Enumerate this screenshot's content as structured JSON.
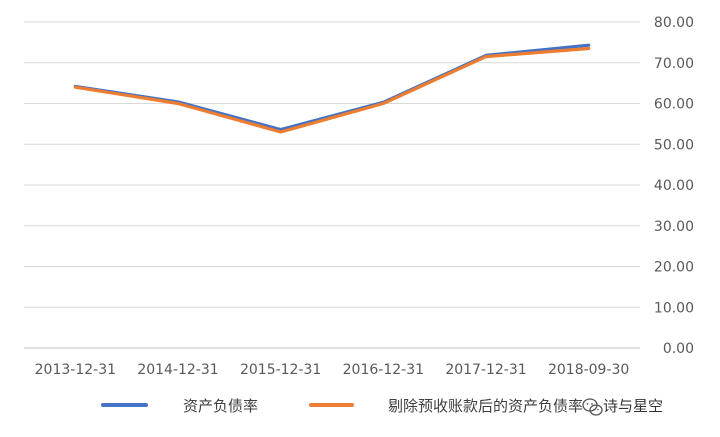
{
  "chart_data": {
    "type": "line",
    "title": "",
    "xlabel": "",
    "ylabel": "",
    "categories": [
      "2013-12-31",
      "2014-12-31",
      "2015-12-31",
      "2016-12-31",
      "2017-12-31",
      "2018-09-30"
    ],
    "ylim": [
      0,
      80
    ],
    "y_ticks": [
      "0.00",
      "10.00",
      "20.00",
      "30.00",
      "40.00",
      "50.00",
      "60.00",
      "70.00",
      "80.00"
    ],
    "y_axis_side": "right",
    "grid": true,
    "legend_position": "bottom",
    "series": [
      {
        "name": "资产负债率",
        "color": "#4472c4",
        "values": [
          64.2,
          60.4,
          53.6,
          60.3,
          71.8,
          74.3
        ]
      },
      {
        "name": "剔除预收账款后的资产负债率",
        "color": "#ed7d31",
        "values": [
          64.0,
          60.0,
          53.0,
          60.0,
          71.5,
          73.5
        ]
      }
    ]
  },
  "watermark": {
    "icon": "wechat-icon",
    "text": "诗与星空"
  }
}
